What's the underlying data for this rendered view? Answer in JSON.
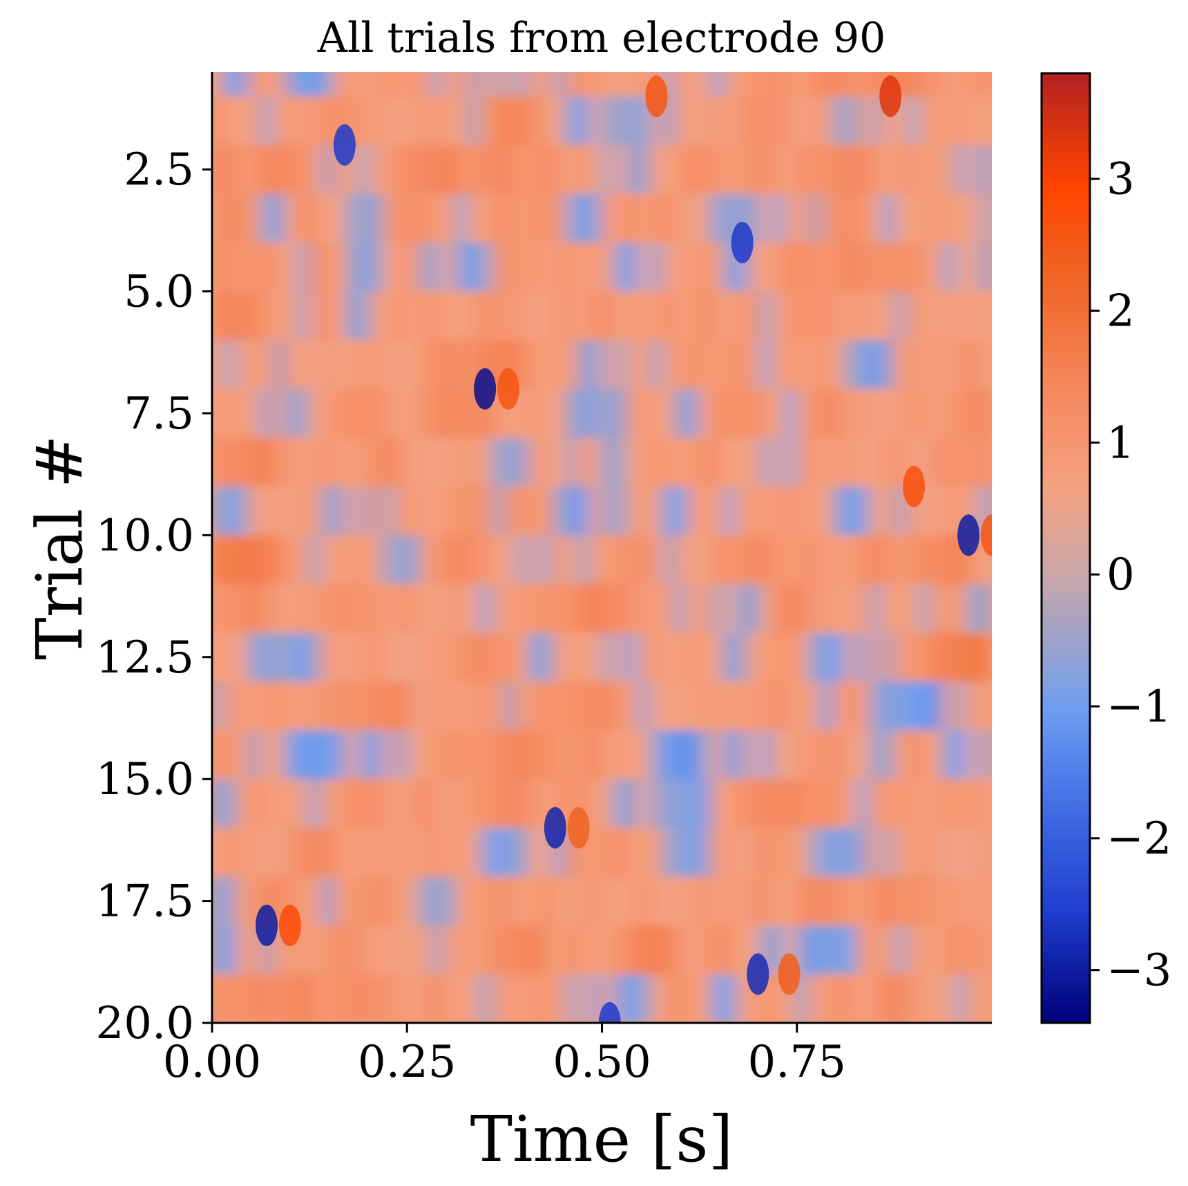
{
  "chart_data": {
    "type": "heatmap",
    "title": "All trials from electrode 90",
    "xlabel": "Time [s]",
    "ylabel": "Trial #",
    "xlim": [
      0.0,
      1.0
    ],
    "ylim": [
      20.0,
      0.5
    ],
    "x_ticks": [
      "0.00",
      "0.25",
      "0.50",
      "0.75"
    ],
    "x_tick_values": [
      0.0,
      0.25,
      0.5,
      0.75
    ],
    "y_ticks": [
      "2.5",
      "5.0",
      "7.5",
      "10.0",
      "12.5",
      "15.0",
      "17.5",
      "20.0"
    ],
    "y_tick_values": [
      2.5,
      5.0,
      7.5,
      10.0,
      12.5,
      15.0,
      17.5,
      20.0
    ],
    "colorbar": {
      "vmin": -3.4,
      "vmax": 3.8,
      "ticks": [
        "−3",
        "−2",
        "−1",
        "0",
        "1",
        "2",
        "3"
      ],
      "tick_values": [
        -3,
        -2,
        -1,
        0,
        1,
        2,
        3
      ],
      "colormap": [
        "#00007a",
        "#1f3fcf",
        "#4a78e8",
        "#6e9ef0",
        "#c9a6a8",
        "#f4a282",
        "#f58a60",
        "#f0601e",
        "#ff4500",
        "#b22222"
      ]
    },
    "n_trials": 20,
    "grid": false,
    "highlights": [
      {
        "trial": 7,
        "time": 0.35,
        "value": -3.2
      },
      {
        "trial": 7,
        "time": 0.38,
        "value": 2.6
      },
      {
        "trial": 18,
        "time": 0.07,
        "value": -3.0
      },
      {
        "trial": 18,
        "time": 0.1,
        "value": 2.8
      },
      {
        "trial": 16,
        "time": 0.44,
        "value": -2.9
      },
      {
        "trial": 16,
        "time": 0.47,
        "value": 2.3
      },
      {
        "trial": 1,
        "time": 0.87,
        "value": 3.3
      },
      {
        "trial": 1,
        "time": 0.57,
        "value": 2.6
      },
      {
        "trial": 10,
        "time": 0.97,
        "value": -3.0
      },
      {
        "trial": 10,
        "time": 1.0,
        "value": 2.6
      },
      {
        "trial": 9,
        "time": 0.9,
        "value": 2.7
      },
      {
        "trial": 19,
        "time": 0.7,
        "value": -2.8
      },
      {
        "trial": 19,
        "time": 0.74,
        "value": 2.4
      },
      {
        "trial": 4,
        "time": 0.68,
        "value": -2.6
      },
      {
        "trial": 2,
        "time": 0.17,
        "value": -2.6
      },
      {
        "trial": 20,
        "time": 0.51,
        "value": -2.6
      }
    ]
  }
}
